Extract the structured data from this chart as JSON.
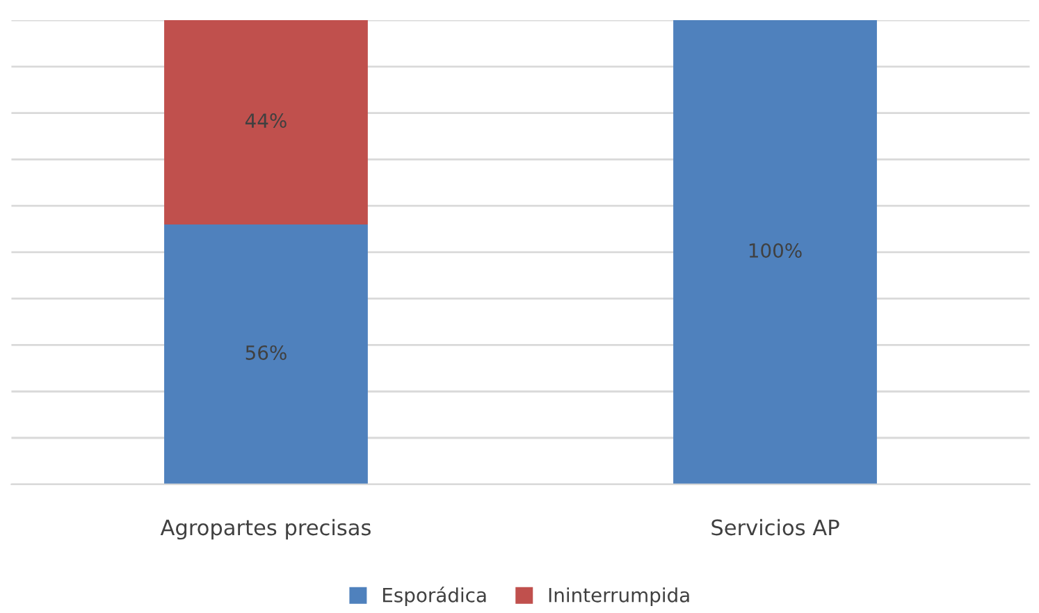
{
  "chart_data": {
    "type": "bar",
    "stacked": true,
    "categories": [
      "Agropartes precisas",
      "Servicios AP"
    ],
    "series": [
      {
        "name": "Esporádica",
        "color": "#4f81bd",
        "values": [
          56,
          100
        ],
        "value_labels": [
          "56%",
          "100%"
        ]
      },
      {
        "name": "Ininterrumpida",
        "color": "#c0504d",
        "values": [
          44,
          0
        ],
        "value_labels": [
          "44%",
          null
        ]
      }
    ],
    "ylim": [
      0,
      100
    ],
    "yticks": [
      {
        "value": 0,
        "label": null
      },
      {
        "value": 10,
        "label": null
      },
      {
        "value": 20,
        "label": null
      },
      {
        "value": 30,
        "label": null
      },
      {
        "value": 40,
        "label": null
      },
      {
        "value": 50,
        "label": null
      },
      {
        "value": 60,
        "label": null
      },
      {
        "value": 70,
        "label": null
      },
      {
        "value": 80,
        "label": null
      },
      {
        "value": 90,
        "label": null
      },
      {
        "value": 100,
        "label": null
      }
    ],
    "grid": "y",
    "legend": "bottom",
    "tick_labels": "x"
  }
}
